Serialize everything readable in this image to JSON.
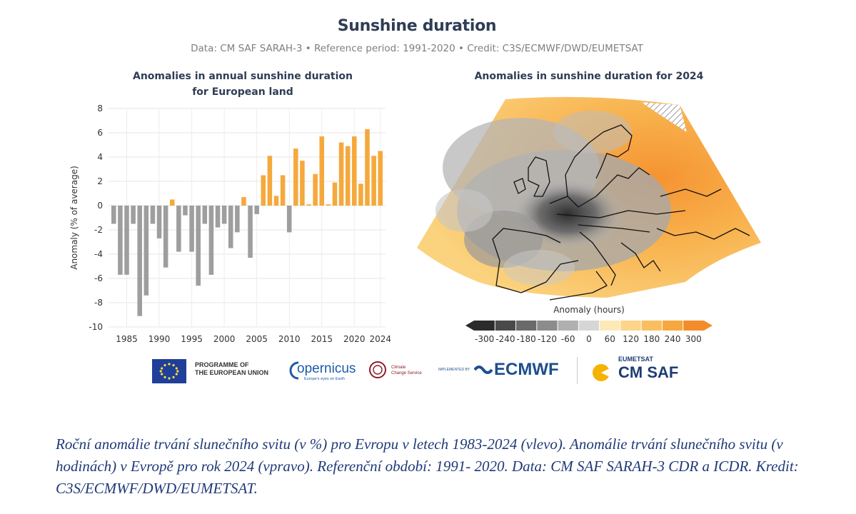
{
  "header": {
    "title": "Sunshine duration",
    "subtitle": "Data: CM SAF SARAH-3 • Reference period: 1991-2020 • Credit: C3S/ECMWF/DWD/EUMETSAT"
  },
  "left_panel": {
    "title_line1": "Anomalies in annual sunshine duration",
    "title_line2": "for European land"
  },
  "right_panel": {
    "title": "Anomalies in sunshine duration for 2024",
    "colorbar_label": "Anomaly (hours)",
    "colorbar_ticks": [
      "-300",
      "-240",
      "-180",
      "-120",
      "-60",
      "0",
      "60",
      "120",
      "180",
      "240",
      "300"
    ],
    "colorbar_colors": [
      "#2b2b2b",
      "#4a4a4a",
      "#6a6a6a",
      "#8c8c8c",
      "#b0b0b0",
      "#d6d6d6",
      "#fde9b6",
      "#fcd58a",
      "#f9bf5f",
      "#f6a83e",
      "#f38d2b"
    ]
  },
  "chart_data": [
    {
      "type": "bar",
      "title": "Anomalies in annual sunshine duration for European land",
      "xlabel": "",
      "ylabel": "Anomaly (% of average)",
      "ylim": [
        -10,
        8
      ],
      "yticks": [
        "8",
        "6",
        "4",
        "2",
        "0",
        "-2",
        "-4",
        "-6",
        "-8",
        "-10"
      ],
      "xticks": [
        "1985",
        "1990",
        "1995",
        "2000",
        "2005",
        "2010",
        "2015",
        "2020",
        "2024"
      ],
      "grid": true,
      "positive_color": "#f5a93c",
      "negative_color": "#9e9e9e",
      "x": [
        1983,
        1984,
        1985,
        1986,
        1987,
        1988,
        1989,
        1990,
        1991,
        1992,
        1993,
        1994,
        1995,
        1996,
        1997,
        1998,
        1999,
        2000,
        2001,
        2002,
        2003,
        2004,
        2005,
        2006,
        2007,
        2008,
        2009,
        2010,
        2011,
        2012,
        2013,
        2014,
        2015,
        2016,
        2017,
        2018,
        2019,
        2020,
        2021,
        2022,
        2023,
        2024
      ],
      "values": [
        -1.5,
        -5.7,
        -5.7,
        -1.5,
        -9.1,
        -7.4,
        -1.5,
        -2.7,
        -5.1,
        0.5,
        -3.8,
        -0.8,
        -3.8,
        -6.6,
        -1.5,
        -5.7,
        -1.8,
        -1.5,
        -3.5,
        -2.2,
        0.7,
        -4.3,
        -0.7,
        2.5,
        4.1,
        0.8,
        2.5,
        -2.2,
        4.7,
        3.7,
        0.1,
        2.6,
        5.7,
        0.1,
        1.9,
        5.2,
        4.9,
        5.7,
        1.8,
        6.3,
        4.1,
        4.5
      ]
    }
  ],
  "logos": {
    "eu_line1": "PROGRAMME OF",
    "eu_line2": "THE EUROPEAN UNION",
    "copernicus": "opernicus",
    "copernicus_tag": "Europe's eyes on Earth",
    "c3s_line1": "Climate",
    "c3s_line2": "Change Service",
    "ecmwf_prefix": "IMPLEMENTED BY",
    "ecmwf": "ECMWF",
    "eumetsat": "EUMETSAT",
    "cmsaf": "CM SAF"
  },
  "caption": "Roční anomálie trvání slunečního svitu (v %) pro Evropu v letech 1983-2024 (vlevo). Anomálie trvání slunečního svitu (v hodinách) v Evropě pro rok 2024 (vpravo). Referenční období: 1991- 2020. Data: CM SAF SARAH-3 CDR a ICDR. Kredit: C3S/ECMWF/DWD/EUMETSAT."
}
